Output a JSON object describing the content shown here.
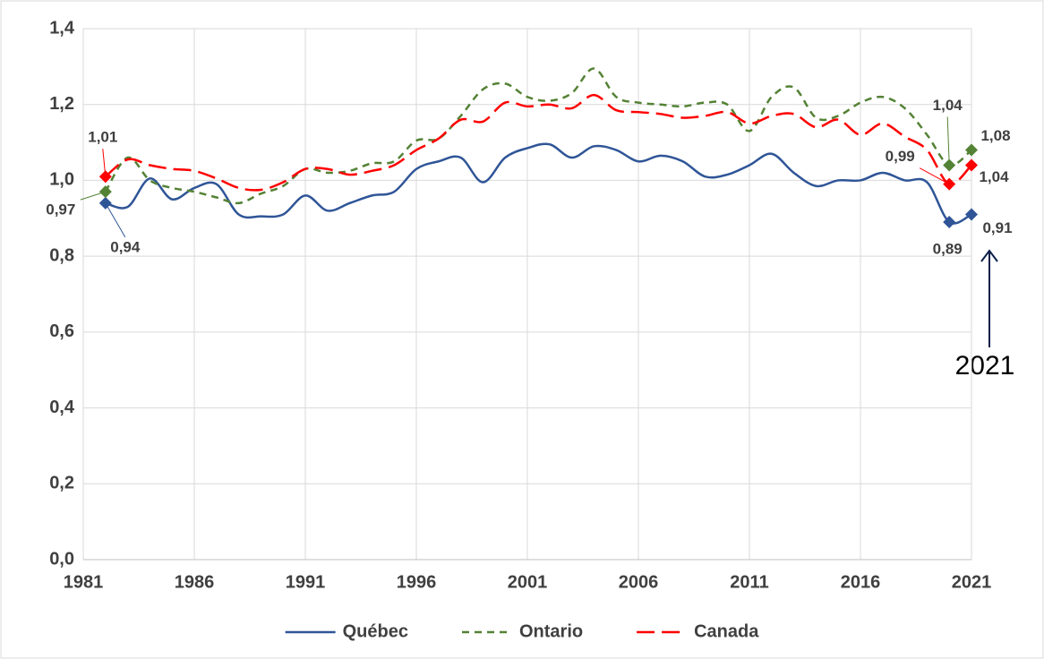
{
  "chart_data": {
    "type": "line",
    "x": [
      1982,
      1983,
      1984,
      1985,
      1986,
      1987,
      1988,
      1989,
      1990,
      1991,
      1992,
      1993,
      1994,
      1995,
      1996,
      1997,
      1998,
      1999,
      2000,
      2001,
      2002,
      2003,
      2004,
      2005,
      2006,
      2007,
      2008,
      2009,
      2010,
      2011,
      2012,
      2013,
      2014,
      2015,
      2016,
      2017,
      2018,
      2019,
      2020,
      2021
    ],
    "xlim": [
      1981,
      2021
    ],
    "xticks": [
      1981,
      1986,
      1991,
      1996,
      2001,
      2006,
      2011,
      2016,
      2021
    ],
    "ylim": [
      0,
      1.4
    ],
    "yticks": [
      {
        "value": 0,
        "label": "0,0"
      },
      {
        "value": 0.2,
        "label": "0,2"
      },
      {
        "value": 0.4,
        "label": "0,4"
      },
      {
        "value": 0.6,
        "label": "0,6"
      },
      {
        "value": 0.8,
        "label": "0,8"
      },
      {
        "value": 1.0,
        "label": "1,0"
      },
      {
        "value": 1.2,
        "label": "1,2"
      },
      {
        "value": 1.4,
        "label": "1,4"
      }
    ],
    "grid": true,
    "legend": "bottom",
    "annotation": "2021",
    "series": [
      {
        "name": "Québec",
        "color": "#2f5597",
        "dash": "solid",
        "values": [
          0.94,
          0.93,
          1.005,
          0.95,
          0.98,
          0.99,
          0.91,
          0.905,
          0.91,
          0.96,
          0.92,
          0.94,
          0.96,
          0.97,
          1.03,
          1.05,
          1.06,
          0.995,
          1.06,
          1.085,
          1.095,
          1.06,
          1.09,
          1.08,
          1.05,
          1.065,
          1.05,
          1.01,
          1.015,
          1.04,
          1.07,
          1.02,
          0.985,
          1.0,
          1.0,
          1.02,
          1.0,
          0.995,
          0.89,
          0.91
        ],
        "value_labels": [
          "0,94",
          null,
          null,
          null,
          null,
          null,
          null,
          null,
          null,
          null,
          null,
          null,
          null,
          null,
          null,
          null,
          null,
          null,
          null,
          null,
          null,
          null,
          null,
          null,
          null,
          null,
          null,
          null,
          null,
          null,
          null,
          null,
          null,
          null,
          null,
          null,
          null,
          null,
          "0,89",
          "0,91"
        ]
      },
      {
        "name": "Ontario",
        "color": "#548235",
        "dash": "short",
        "values": [
          0.97,
          1.06,
          1.0,
          0.98,
          0.97,
          0.955,
          0.94,
          0.965,
          0.985,
          1.03,
          1.02,
          1.025,
          1.045,
          1.05,
          1.105,
          1.11,
          1.17,
          1.24,
          1.255,
          1.22,
          1.21,
          1.23,
          1.295,
          1.22,
          1.205,
          1.2,
          1.195,
          1.205,
          1.2,
          1.13,
          1.22,
          1.245,
          1.165,
          1.17,
          1.205,
          1.22,
          1.19,
          1.12,
          1.04,
          1.08
        ],
        "value_labels": [
          "0,97",
          null,
          null,
          null,
          null,
          null,
          null,
          null,
          null,
          null,
          null,
          null,
          null,
          null,
          null,
          null,
          null,
          null,
          null,
          null,
          null,
          null,
          null,
          null,
          null,
          null,
          null,
          null,
          null,
          null,
          null,
          null,
          null,
          null,
          null,
          null,
          null,
          null,
          "1,04",
          "1,08"
        ]
      },
      {
        "name": "Canada",
        "color": "#ff0000",
        "dash": "long",
        "values": [
          1.01,
          1.055,
          1.04,
          1.03,
          1.025,
          1.005,
          0.98,
          0.975,
          0.995,
          1.03,
          1.03,
          1.015,
          1.025,
          1.04,
          1.08,
          1.11,
          1.16,
          1.155,
          1.205,
          1.195,
          1.2,
          1.19,
          1.225,
          1.185,
          1.18,
          1.175,
          1.165,
          1.17,
          1.18,
          1.15,
          1.17,
          1.175,
          1.14,
          1.16,
          1.12,
          1.15,
          1.115,
          1.08,
          0.99,
          1.04
        ],
        "value_labels": [
          "1,01",
          null,
          null,
          null,
          null,
          null,
          null,
          null,
          null,
          null,
          null,
          null,
          null,
          null,
          null,
          null,
          null,
          null,
          null,
          null,
          null,
          null,
          null,
          null,
          null,
          null,
          null,
          null,
          null,
          null,
          null,
          null,
          null,
          null,
          null,
          null,
          null,
          null,
          "0,99",
          "1,04"
        ]
      }
    ]
  }
}
